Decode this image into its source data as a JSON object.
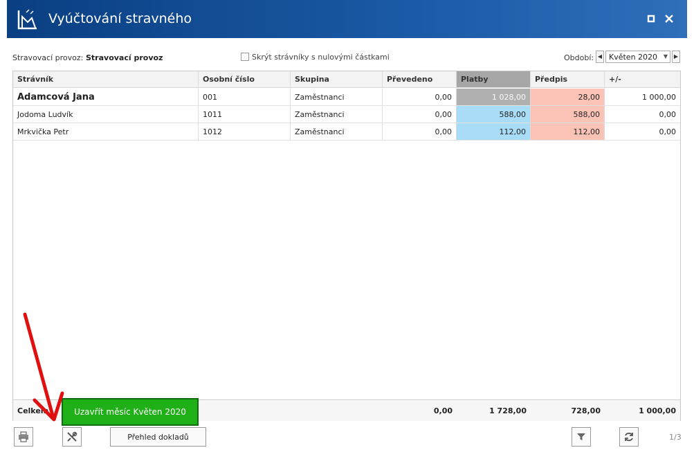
{
  "window": {
    "title": "Vyúčtování stravného",
    "colors": {
      "titlebar": "#1b5aa6",
      "close_icon": "close-icon",
      "maximize_icon": "maximize-icon"
    }
  },
  "toolbar": {
    "provoz_label": "Stravovací provoz:",
    "provoz_value": "Stravovací provoz",
    "hide_zero_label": "Skrýt strávníky s nulovými částkami",
    "hide_zero_checked": false,
    "period_label": "Období:",
    "period_value": "Květen 2020"
  },
  "grid": {
    "columns": [
      "Strávník",
      "Osobní číslo",
      "Skupina",
      "Převedeno",
      "Platby",
      "Předpis",
      "+/-"
    ],
    "rows": [
      {
        "name": "Adamcová Jana",
        "number": "001",
        "group": "Zaměstnanci",
        "transferred": "0,00",
        "payments": "1 028,00",
        "prescription": "28,00",
        "diff": "1 000,00"
      },
      {
        "name": "Jodoma Ludvík",
        "number": "1011",
        "group": "Zaměstnanci",
        "transferred": "0,00",
        "payments": "588,00",
        "prescription": "588,00",
        "diff": "0,00"
      },
      {
        "name": "Mrkvička Petr",
        "number": "1012",
        "group": "Zaměstnanci",
        "transferred": "0,00",
        "payments": "112,00",
        "prescription": "112,00",
        "diff": "0,00"
      }
    ],
    "footer": {
      "label": "Celkem",
      "transferred": "0,00",
      "payments": "1 728,00",
      "prescription": "728,00",
      "diff": "1 000,00"
    },
    "colors": {
      "payments_selected": "#b0b0b0",
      "payments": "#a9dcf6",
      "prescription": "#fbc3b6"
    }
  },
  "popup": {
    "label": "Uzavřít měsíc Květen 2020",
    "color": "#1fb017"
  },
  "bottom": {
    "doc_button": "Přehled dokladů",
    "pager": "1/3",
    "icons": [
      "printer-icon",
      "tools-icon",
      "filter-icon",
      "refresh-icon"
    ]
  }
}
